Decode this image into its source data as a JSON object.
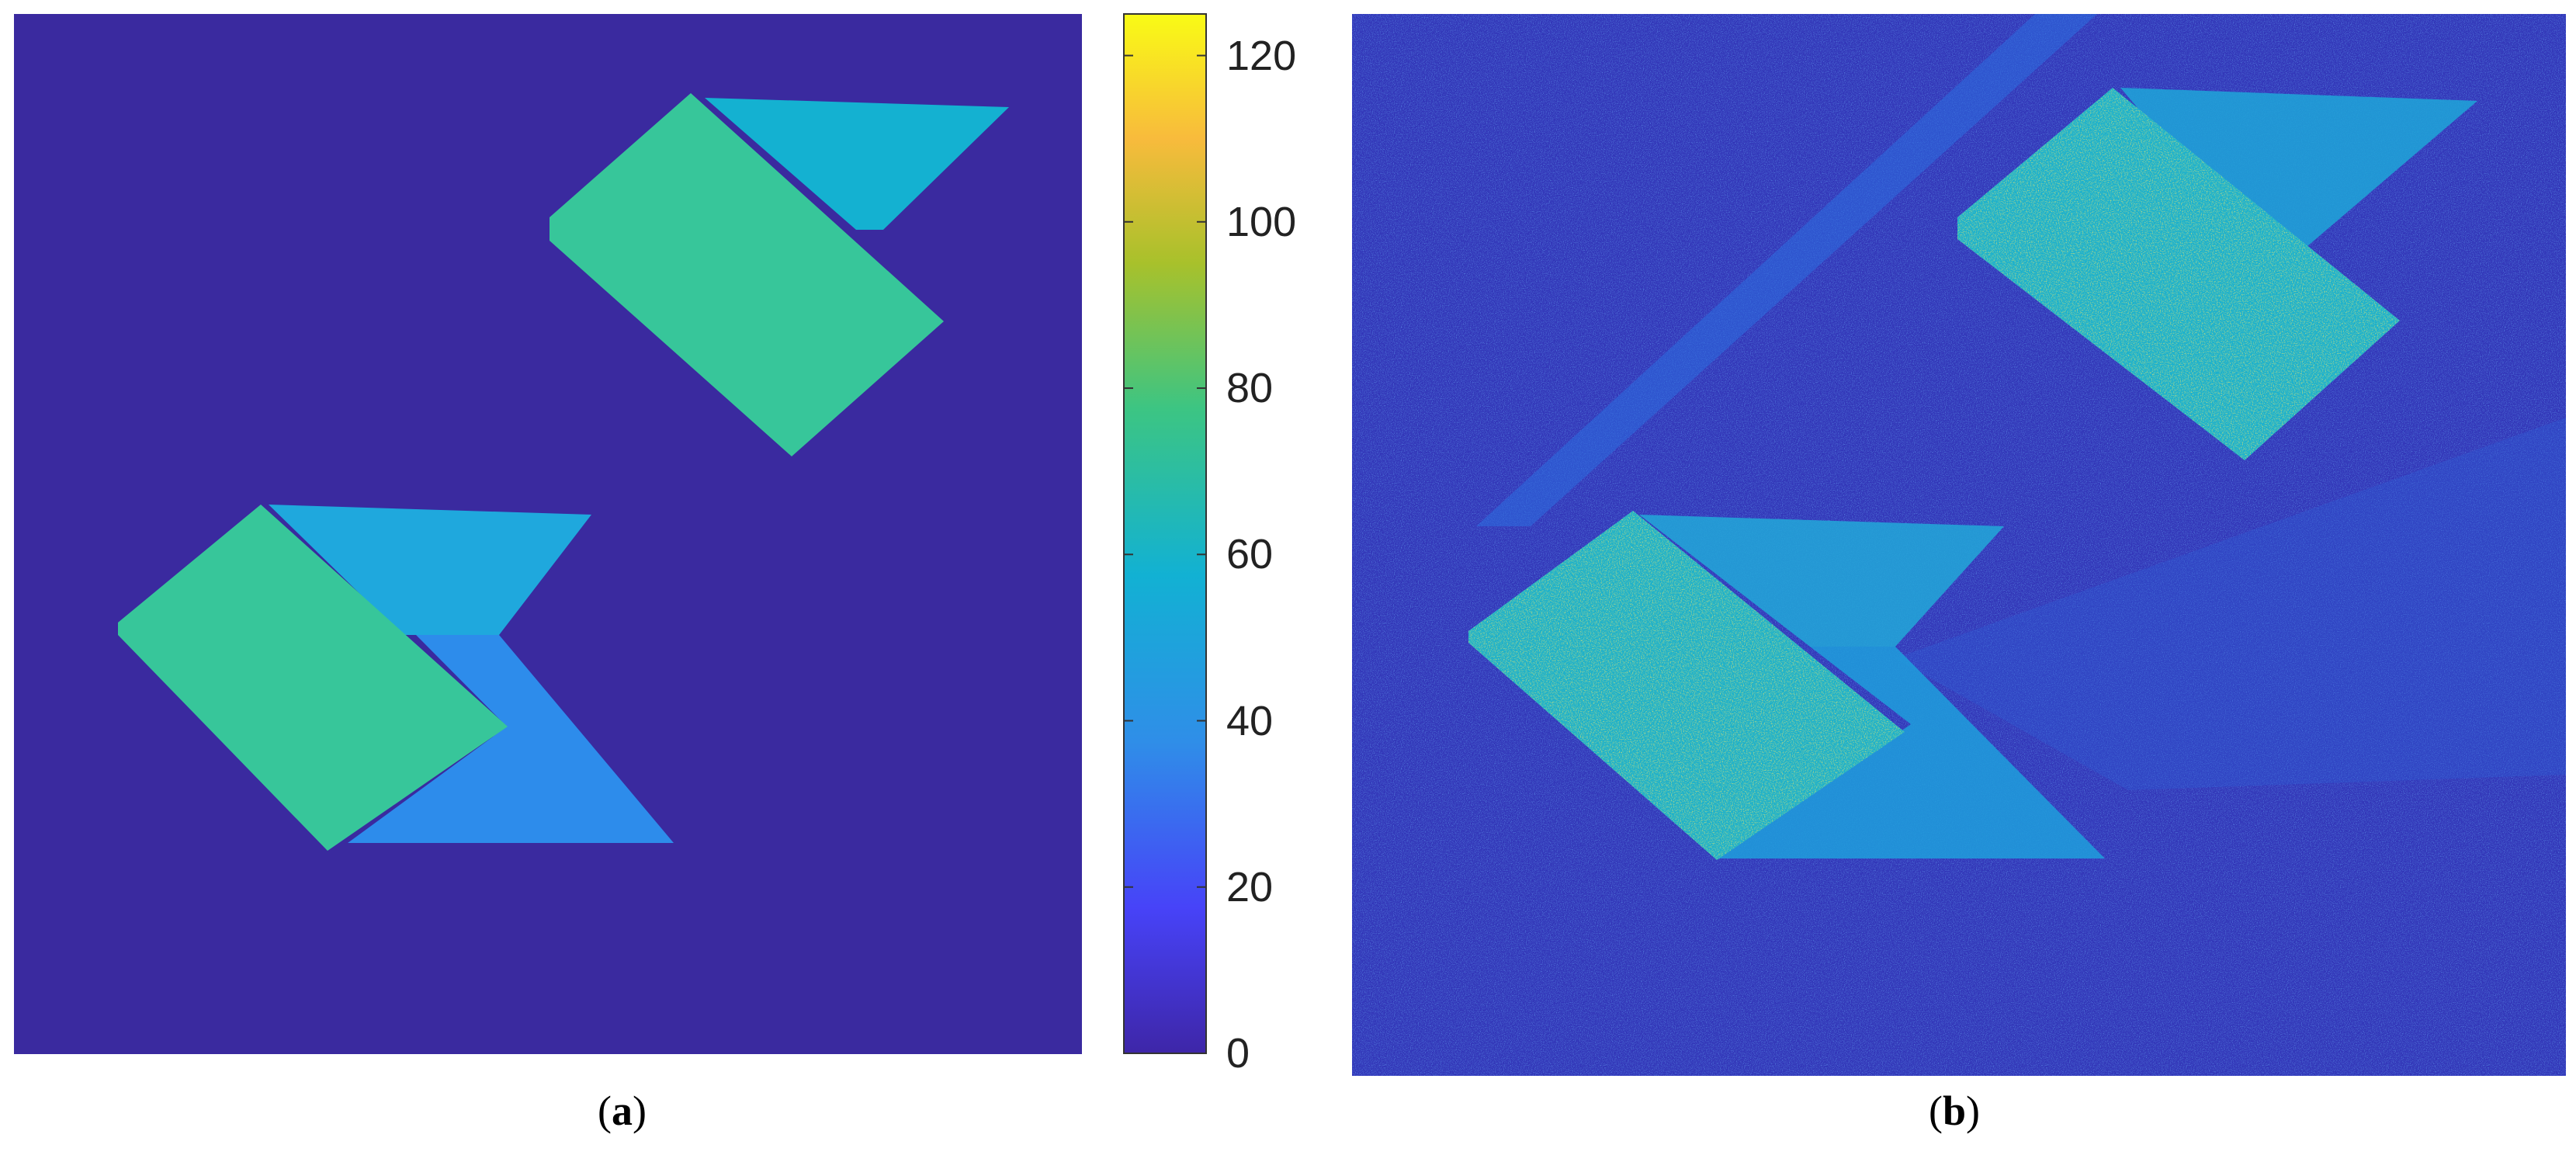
{
  "colors": {
    "background": "#3b2aa0",
    "shape_green": "#38c79a",
    "shape_cyan": "#14b2d2",
    "shape_blue_mid": "#23a8e0",
    "shape_blue": "#2e8ee8",
    "speckle_yellow": "#c9c52a",
    "colormap": [
      "#3e26a8",
      "#4743f8",
      "#2f8ee8",
      "#12b1d3",
      "#3cc583",
      "#a8c12b",
      "#f8bb3c",
      "#f9fb15"
    ]
  },
  "colorbar": {
    "min": 0,
    "max": 125,
    "ticks": [
      "0",
      "20",
      "40",
      "60",
      "80",
      "100",
      "120"
    ],
    "tick_values": [
      0,
      20,
      40,
      60,
      80,
      100,
      120
    ]
  },
  "captions": {
    "a": "a",
    "b": "b"
  }
}
